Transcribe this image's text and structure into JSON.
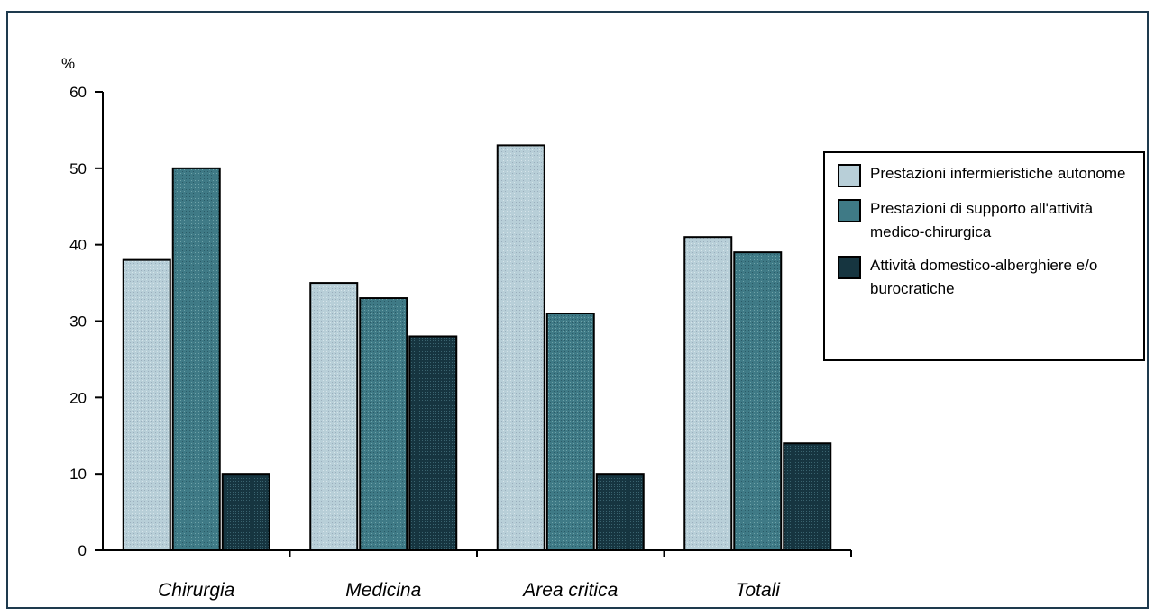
{
  "chart_data": {
    "type": "bar",
    "title": "",
    "xlabel": "",
    "ylabel": "%",
    "ylim": [
      0,
      60
    ],
    "yticks": [
      0,
      10,
      20,
      30,
      40,
      50,
      60
    ],
    "grid": false,
    "legend_position": "right",
    "categories": [
      "Chirurgia",
      "Medicina",
      "Area critica",
      "Totali"
    ],
    "series": [
      {
        "name": "Prestazioni infermieristiche autonome",
        "color": "#b8cfd8",
        "values": [
          38,
          35,
          53,
          41
        ]
      },
      {
        "name": "Prestazioni di supporto all'attività medico-chirurgica",
        "color": "#3f7a86",
        "values": [
          50,
          33,
          31,
          39
        ]
      },
      {
        "name": "Attività domestico-alberghiere e/o burocratiche",
        "color": "#163540",
        "values": [
          10,
          28,
          10,
          14
        ]
      }
    ]
  }
}
